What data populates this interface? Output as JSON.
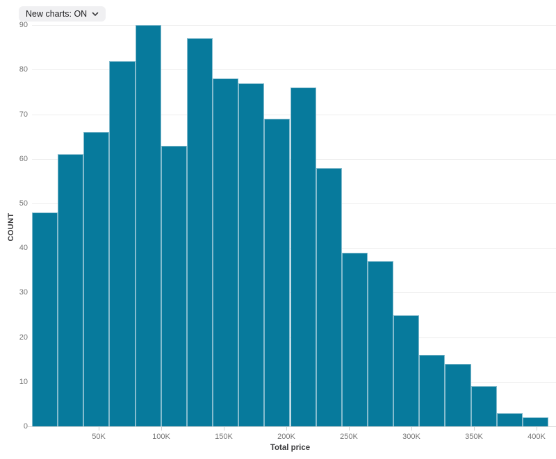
{
  "controls": {
    "new_charts_toggle": {
      "label": "New charts: ON"
    }
  },
  "chart_data": {
    "type": "bar",
    "subtype": "histogram",
    "title": "",
    "xlabel": "Total price",
    "ylabel": "COUNT",
    "values": [
      48,
      61,
      66,
      82,
      90,
      63,
      87,
      78,
      77,
      69,
      76,
      58,
      39,
      37,
      25,
      16,
      14,
      9,
      3,
      2
    ],
    "bin_count": 20,
    "x_range_k": [
      0,
      400
    ],
    "x_bin_width_k": 20,
    "y_ticks": [
      0,
      10,
      20,
      30,
      40,
      50,
      60,
      70,
      80,
      90
    ],
    "x_ticks": [
      {
        "label": "50K",
        "k": 50
      },
      {
        "label": "100K",
        "k": 100
      },
      {
        "label": "150K",
        "k": 150
      },
      {
        "label": "200K",
        "k": 200
      },
      {
        "label": "250K",
        "k": 250
      },
      {
        "label": "300K",
        "k": 300
      },
      {
        "label": "350K",
        "k": 350
      },
      {
        "label": "400K",
        "k": 400
      }
    ],
    "ylim": [
      0,
      90
    ],
    "grid": "horizontal",
    "legend": "none",
    "colors": {
      "bar_fill": "#077a9c",
      "bar_edge": "#85bcce",
      "gridline": "#ededed",
      "axis_line": "#d7d7d7",
      "tick_text": "#757575",
      "axis_title_text": "#3a3a3c",
      "control_bg": "#f0f0f2"
    }
  }
}
